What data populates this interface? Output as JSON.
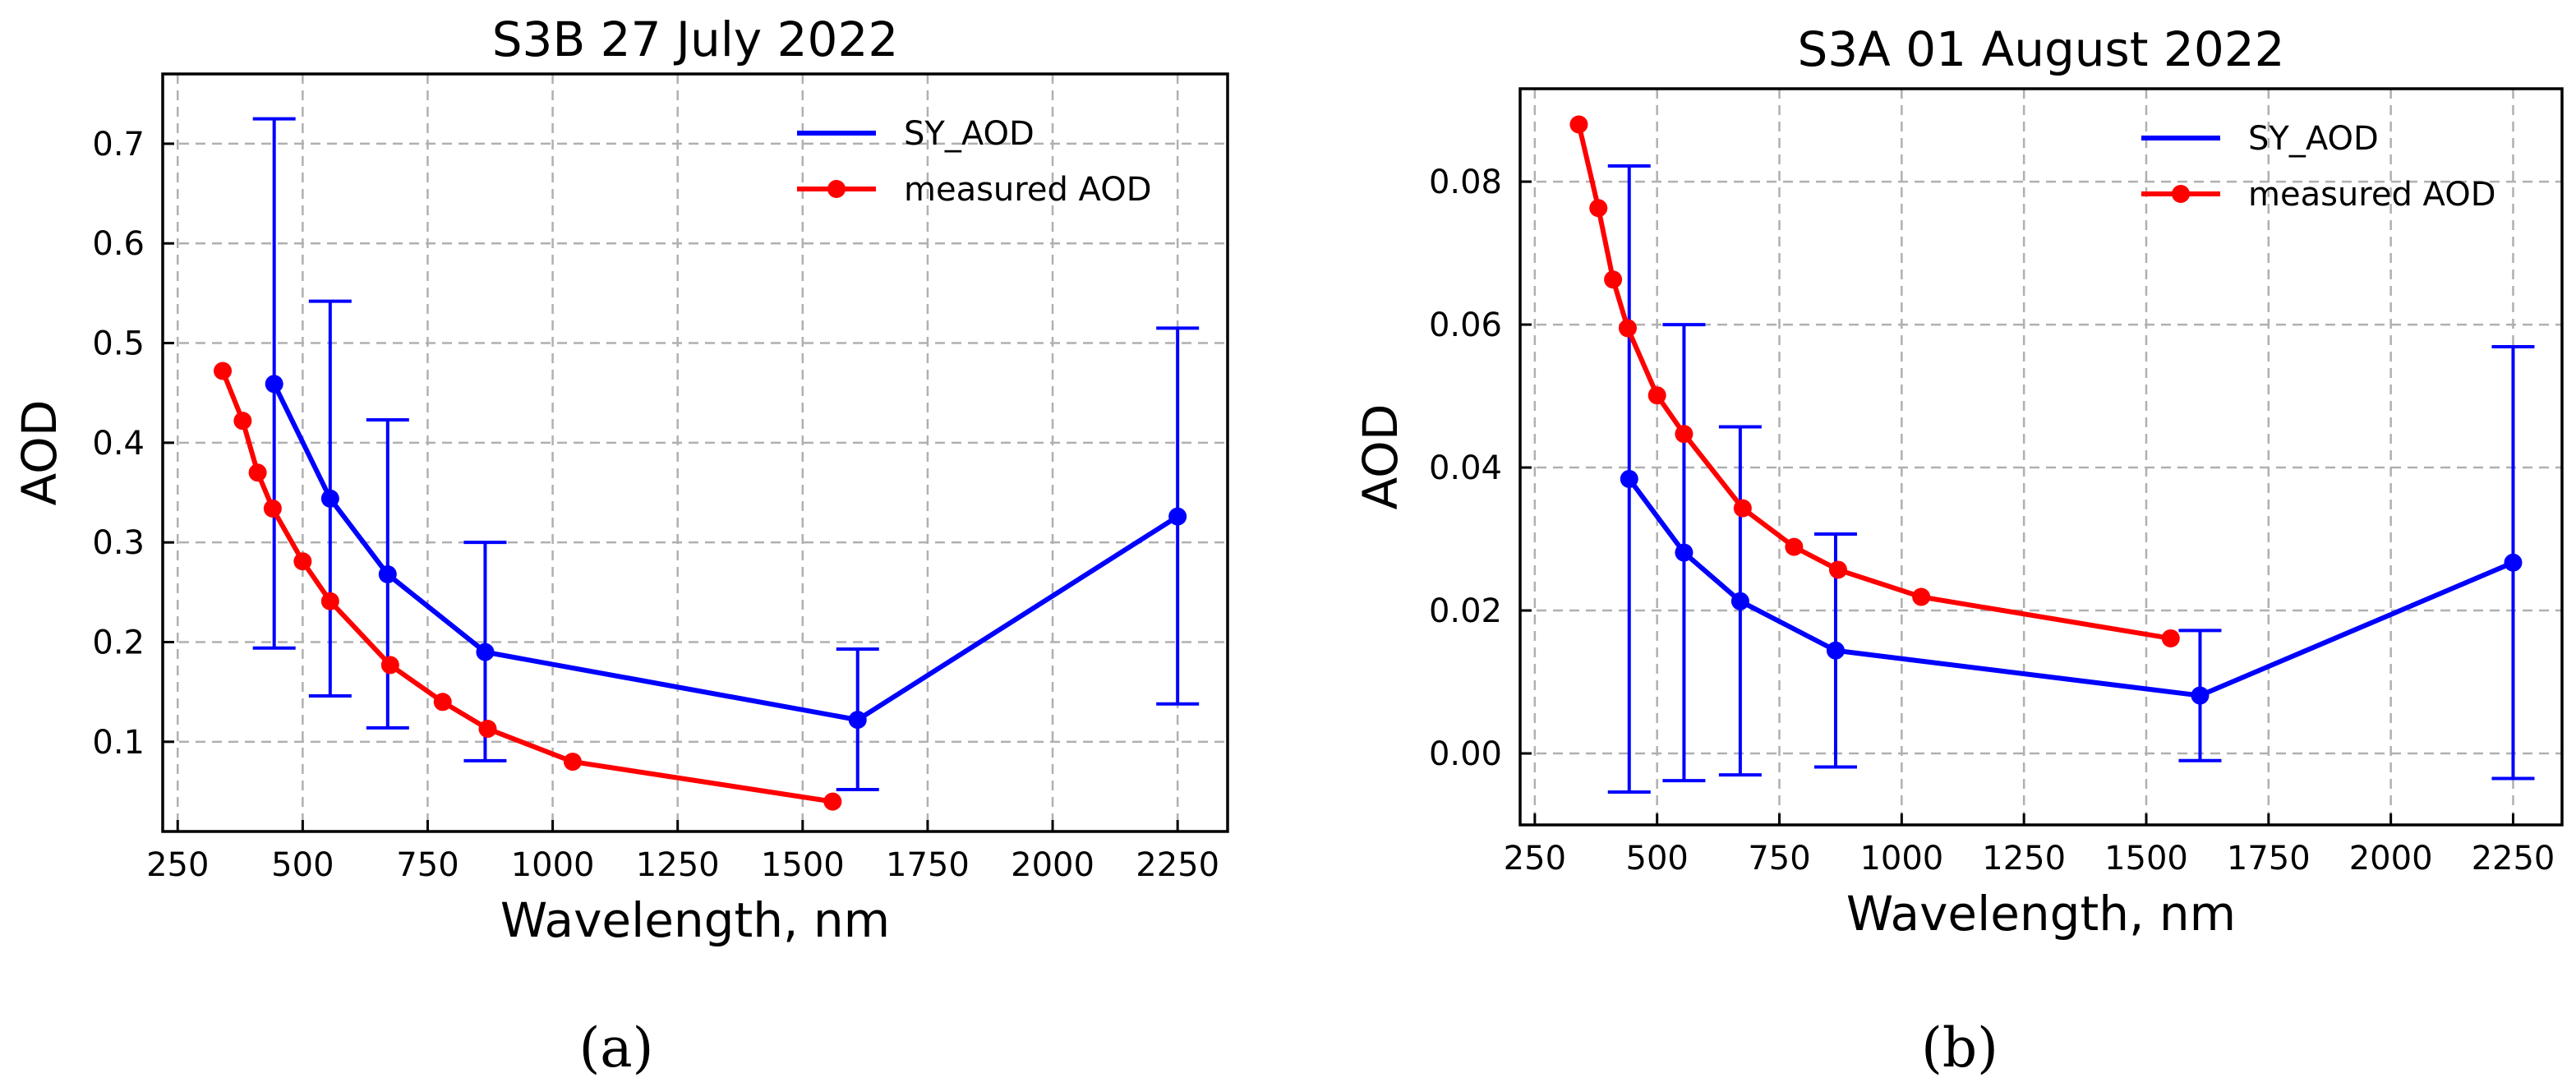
{
  "figure": {
    "captions": [
      "(a)",
      "(b)"
    ]
  },
  "chart_data": [
    {
      "type": "line",
      "title": "S3B 27 July 2022",
      "xlabel": "Wavelength, nm",
      "ylabel": "AOD",
      "xlim": [
        220,
        2350
      ],
      "ylim": [
        0.01,
        0.77
      ],
      "xticks": [
        250,
        500,
        750,
        1000,
        1250,
        1500,
        1750,
        2000,
        2250
      ],
      "yticks": [
        0.1,
        0.2,
        0.3,
        0.4,
        0.5,
        0.6,
        0.7
      ],
      "ytick_labels": [
        "0.1",
        "0.2",
        "0.3",
        "0.4",
        "0.5",
        "0.6",
        "0.7"
      ],
      "grid": true,
      "legend_position": "top-right",
      "series": [
        {
          "name": "SY_AOD",
          "color": "#0000ff",
          "x": [
            443,
            555,
            670,
            865,
            1610,
            2250
          ],
          "y": [
            0.459,
            0.344,
            0.268,
            0.19,
            0.122,
            0.326
          ],
          "yerr_low": [
            0.194,
            0.146,
            0.114,
            0.081,
            0.052,
            0.138
          ],
          "yerr_high": [
            0.725,
            0.542,
            0.423,
            0.3,
            0.193,
            0.515
          ]
        },
        {
          "name": "measured AOD",
          "color": "#ff0000",
          "x": [
            340,
            380,
            410,
            440,
            500,
            555,
            675,
            780,
            870,
            1040,
            1560
          ],
          "y": [
            0.472,
            0.422,
            0.37,
            0.334,
            0.281,
            0.241,
            0.177,
            0.14,
            0.113,
            0.08,
            0.04
          ]
        }
      ]
    },
    {
      "type": "line",
      "title": "S3A 01 August 2022",
      "xlabel": "Wavelength, nm",
      "ylabel": "AOD",
      "xlim": [
        220,
        2350
      ],
      "ylim": [
        -0.01,
        0.093
      ],
      "xticks": [
        250,
        500,
        750,
        1000,
        1250,
        1500,
        1750,
        2000,
        2250
      ],
      "yticks": [
        0.0,
        0.02,
        0.04,
        0.06,
        0.08
      ],
      "ytick_labels": [
        "0.00",
        "0.02",
        "0.04",
        "0.06",
        "0.08"
      ],
      "grid": true,
      "legend_position": "top-right",
      "series": [
        {
          "name": "SY_AOD",
          "color": "#0000ff",
          "x": [
            443,
            555,
            670,
            865,
            1610,
            2250
          ],
          "y": [
            0.0384,
            0.0281,
            0.0213,
            0.0144,
            0.0081,
            0.0267
          ],
          "yerr_low": [
            -0.0054,
            -0.0038,
            -0.003,
            -0.0019,
            -0.001,
            -0.0035
          ],
          "yerr_high": [
            0.0822,
            0.06,
            0.0457,
            0.0307,
            0.0172,
            0.0569
          ]
        },
        {
          "name": "measured AOD",
          "color": "#ff0000",
          "x": [
            340,
            380,
            410,
            440,
            500,
            555,
            675,
            780,
            870,
            1040,
            1550
          ],
          "y": [
            0.088,
            0.0763,
            0.0663,
            0.0595,
            0.0501,
            0.0447,
            0.0343,
            0.0289,
            0.0257,
            0.0219,
            0.0161
          ]
        }
      ]
    }
  ]
}
